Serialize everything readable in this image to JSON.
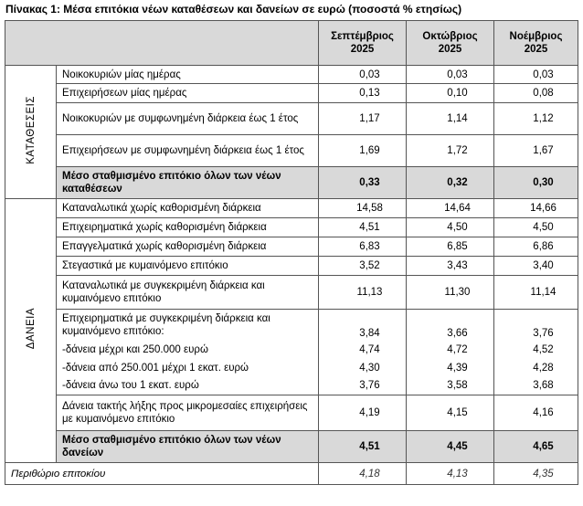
{
  "title": "Πίνακας 1: Μέσα επιτόκια νέων καταθέσεων και δανείων σε ευρώ (ποσοστά % ετησίως)",
  "columns": [
    "Σεπτέμβριος 2025",
    "Οκτώβριος 2025",
    "Νοέμβριος 2025"
  ],
  "sections": [
    {
      "label": "ΚΑΤΑΘΕΣΕΙΣ",
      "rows": [
        {
          "label": "Νοικοκυριών μίας ημέρας",
          "values": [
            "0,03",
            "0,03",
            "0,03"
          ]
        },
        {
          "label": "Επιχειρήσεων μίας ημέρας",
          "values": [
            "0,13",
            "0,10",
            "0,08"
          ]
        },
        {
          "label": "Νοικοκυριών με συμφωνημένη διάρκεια έως 1 έτος",
          "values": [
            "1,17",
            "1,14",
            "1,12"
          ]
        },
        {
          "label": "Επιχειρήσεων με συμφωνημένη διάρκεια έως 1 έτος",
          "values": [
            "1,69",
            "1,72",
            "1,67"
          ]
        }
      ],
      "total": {
        "label": "Μέσο σταθμισμένο επιτόκιο όλων των νέων καταθέσεων",
        "values": [
          "0,33",
          "0,32",
          "0,30"
        ]
      }
    },
    {
      "label": "ΔΑΝΕΙΑ",
      "rows": [
        {
          "label": "Καταναλωτικά χωρίς καθορισμένη διάρκεια",
          "values": [
            "14,58",
            "14,64",
            "14,66"
          ]
        },
        {
          "label": "Επιχειρηματικά χωρίς καθορισμένη διάρκεια",
          "values": [
            "4,51",
            "4,50",
            "4,50"
          ]
        },
        {
          "label": "Επαγγελματικά χωρίς καθορισμένη διάρκεια",
          "values": [
            "6,83",
            "6,85",
            "6,86"
          ]
        },
        {
          "label": "Στεγαστικά με κυμαινόμενο επιτόκιο",
          "values": [
            "3,52",
            "3,43",
            "3,40"
          ]
        },
        {
          "label": "Καταναλωτικά με συγκεκριμένη διάρκεια και κυμαινόμενο επιτόκιο",
          "values": [
            "11,13",
            "11,30",
            "11,14"
          ]
        },
        {
          "label": "Επιχειρηματικά με συγκεκριμένη διάρκεια και κυμαινόμενο επιτόκιο:",
          "values": [
            "3,84",
            "3,66",
            "3,76"
          ],
          "subrows": [
            {
              "label": "-δάνεια μέχρι και 250.000 ευρώ",
              "values": [
                "4,74",
                "4,72",
                "4,52"
              ]
            },
            {
              "label": "-δάνεια από 250.001 μέχρι 1 εκατ. ευρώ",
              "values": [
                "4,30",
                "4,39",
                "4,28"
              ]
            },
            {
              "label": "-δάνεια άνω του 1 εκατ. ευρώ",
              "values": [
                "3,76",
                "3,58",
                "3,68"
              ]
            }
          ]
        },
        {
          "label": "Δάνεια τακτής λήξης προς μικρομεσαίες επιχειρήσεις με κυμαινόμενο επιτόκιο",
          "values": [
            "4,19",
            "4,15",
            "4,16"
          ]
        }
      ],
      "total": {
        "label": "Μέσο σταθμισμένο επιτόκιο όλων των νέων δανείων",
        "values": [
          "4,51",
          "4,45",
          "4,65"
        ]
      }
    }
  ],
  "footer": {
    "label": "Περιθώριο επιτοκίου",
    "values": [
      "4,18",
      "4,13",
      "4,35"
    ]
  }
}
